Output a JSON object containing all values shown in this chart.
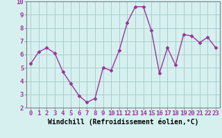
{
  "x": [
    0,
    1,
    2,
    3,
    4,
    5,
    6,
    7,
    8,
    9,
    10,
    11,
    12,
    13,
    14,
    15,
    16,
    17,
    18,
    19,
    20,
    21,
    22,
    23
  ],
  "y": [
    5.3,
    6.2,
    6.5,
    6.1,
    4.7,
    3.8,
    2.9,
    2.4,
    2.7,
    5.0,
    4.8,
    6.3,
    8.4,
    9.6,
    9.6,
    7.8,
    4.6,
    6.5,
    5.2,
    7.5,
    7.4,
    6.9,
    7.3,
    6.5
  ],
  "line_color": "#993399",
  "marker": "D",
  "markersize": 2.5,
  "linewidth": 1.0,
  "bg_color": "#d6f0f0",
  "grid_color": "#aacccc",
  "xlabel": "Windchill (Refroidissement éolien,°C)",
  "xlabel_fontsize": 7,
  "tick_fontsize": 6.5,
  "ylim": [
    2,
    10
  ],
  "xlim": [
    -0.5,
    23.5
  ],
  "yticks": [
    2,
    3,
    4,
    5,
    6,
    7,
    8,
    9,
    10
  ],
  "xticks": [
    0,
    1,
    2,
    3,
    4,
    5,
    6,
    7,
    8,
    9,
    10,
    11,
    12,
    13,
    14,
    15,
    16,
    17,
    18,
    19,
    20,
    21,
    22,
    23
  ],
  "spine_color": "#808080",
  "tick_color": "#808080"
}
